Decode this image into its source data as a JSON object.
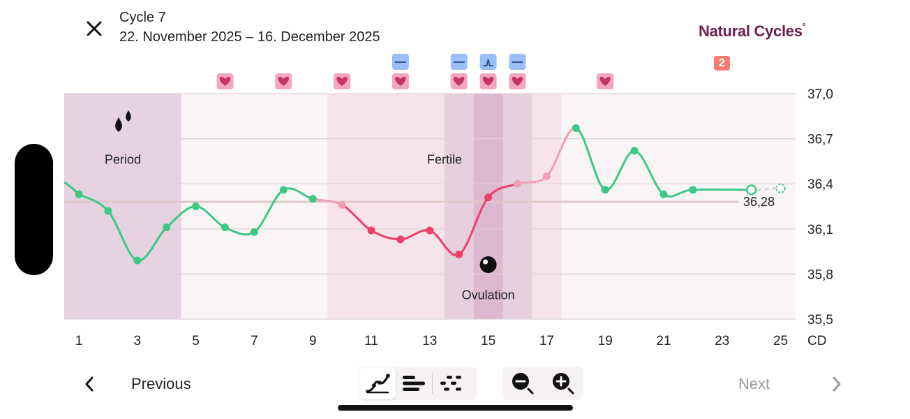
{
  "header": {
    "close_icon": "close-icon",
    "cycle_title": "Cycle 7",
    "cycle_dates": "22. November 2025 – 16. December 2025",
    "brand": "Natural Cycles",
    "brand_mark": "°",
    "notification_count": "2"
  },
  "chart_data": {
    "type": "line",
    "xlabel": "CD",
    "ylabel": "",
    "xlim": [
      1,
      25
    ],
    "ylim": [
      35.5,
      37.0
    ],
    "x_ticks": [
      1,
      3,
      5,
      7,
      9,
      11,
      13,
      15,
      17,
      19,
      21,
      23,
      25
    ],
    "y_ticks": [
      "37,0",
      "36,7",
      "36,4",
      "36,1",
      "35,8",
      "35,5"
    ],
    "y_tick_values": [
      37.0,
      36.7,
      36.4,
      36.1,
      35.8,
      35.5
    ],
    "grid": true,
    "series": [
      {
        "points": [
          {
            "x": 1,
            "y": 36.33,
            "status": "green"
          },
          {
            "x": 2,
            "y": 36.22,
            "status": "green"
          },
          {
            "x": 3,
            "y": 35.89,
            "status": "green"
          },
          {
            "x": 4,
            "y": 36.11,
            "status": "green"
          },
          {
            "x": 5,
            "y": 36.25,
            "status": "green"
          },
          {
            "x": 6,
            "y": 36.11,
            "status": "green"
          },
          {
            "x": 7,
            "y": 36.08,
            "status": "green"
          },
          {
            "x": 8,
            "y": 36.36,
            "status": "green"
          },
          {
            "x": 9,
            "y": 36.3,
            "status": "green"
          },
          {
            "x": 10,
            "y": 36.26,
            "status": "light-red"
          },
          {
            "x": 11,
            "y": 36.09,
            "status": "red"
          },
          {
            "x": 12,
            "y": 36.03,
            "status": "red"
          },
          {
            "x": 13,
            "y": 36.09,
            "status": "red"
          },
          {
            "x": 14,
            "y": 35.93,
            "status": "red"
          },
          {
            "x": 15,
            "y": 36.31,
            "status": "red"
          },
          {
            "x": 16,
            "y": 36.4,
            "status": "light-red"
          },
          {
            "x": 17,
            "y": 36.45,
            "status": "light-red"
          },
          {
            "x": 18,
            "y": 36.77,
            "status": "green"
          },
          {
            "x": 19,
            "y": 36.36,
            "status": "green"
          },
          {
            "x": 20,
            "y": 36.62,
            "status": "green"
          },
          {
            "x": 21,
            "y": 36.33,
            "status": "green"
          },
          {
            "x": 22,
            "y": 36.36,
            "status": "green"
          },
          {
            "x": 24,
            "y": 36.36,
            "status": "green-open"
          },
          {
            "x": 25,
            "y": 36.37,
            "status": "predicted"
          }
        ]
      }
    ],
    "coverline": {
      "value": 36.28,
      "label": "36,28"
    },
    "shaded_bands": [
      {
        "from": 1,
        "to": 4,
        "kind": "period"
      },
      {
        "from": 10,
        "to": 13,
        "kind": "fertile-light"
      },
      {
        "from": 14,
        "to": 16,
        "kind": "fertile-dark"
      },
      {
        "from": 15,
        "to": 15,
        "kind": "ovulation"
      },
      {
        "from": 17,
        "to": 17,
        "kind": "fertile-light"
      }
    ],
    "annotations": [
      {
        "label": "Period",
        "icon": "drops-icon",
        "x": 2,
        "y": 36.56
      },
      {
        "label": "Fertile",
        "x": 13.5,
        "y": 36.56
      },
      {
        "label": "Ovulation",
        "icon": "egg-icon",
        "x": 15,
        "y": 35.66
      }
    ],
    "heart_days": [
      6,
      8,
      10,
      12,
      14,
      15,
      16,
      19
    ],
    "test_markers": [
      {
        "day": 12,
        "type": "negative"
      },
      {
        "day": 14,
        "type": "negative"
      },
      {
        "day": 15,
        "type": "positive"
      },
      {
        "day": 16,
        "type": "negative"
      }
    ]
  },
  "colors": {
    "green": "#3cc986",
    "red": "#ee3f6d",
    "light_red": "#f0a1b6",
    "period_band": "#e6d2e0",
    "fertile_dark": "#e8cfdd",
    "fertile_light": "#f6e4ea",
    "ovulation_band": "#dcb9cf",
    "plot_bg": "#f9f4f6",
    "heart_bg": "#f4a5bf",
    "heart": "#c23661",
    "test_bg": "#9bc0f7",
    "test_line": "#274a8c",
    "brand": "#6b1e4f",
    "badge": "#f37b6f",
    "coverline": "#e0c8c9"
  },
  "footer": {
    "previous_label": "Previous",
    "next_label": "Next",
    "views": [
      "graph-view-icon",
      "list-view-icon",
      "scatter-view-icon"
    ],
    "zoom": [
      "zoom-out-icon",
      "zoom-in-icon"
    ]
  }
}
